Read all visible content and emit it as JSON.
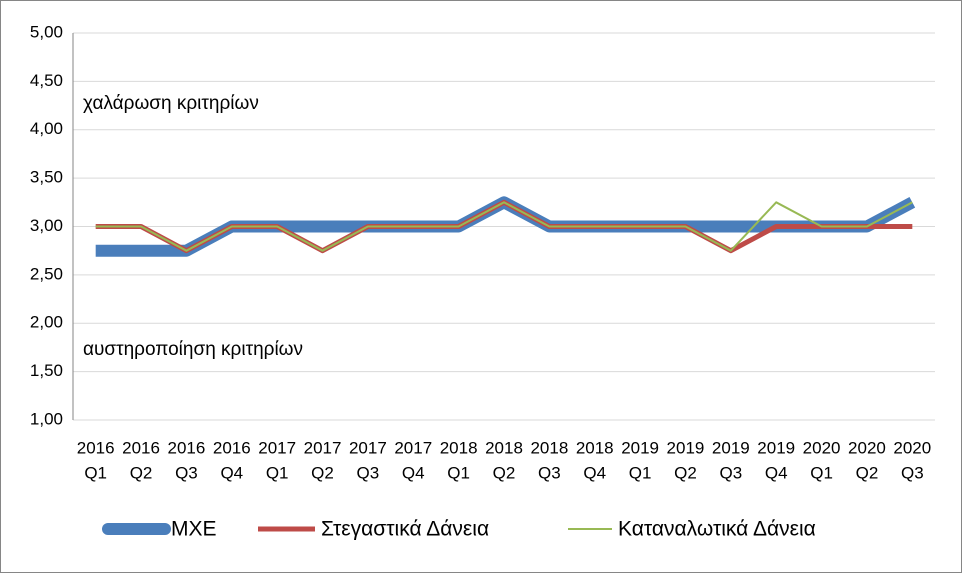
{
  "chart_data": {
    "type": "line",
    "annotations": [
      "χαλάρωση κριτηρίων",
      "αυστηροποίηση κριτηρίων"
    ],
    "categories": [
      [
        "2016",
        "Q1"
      ],
      [
        "2016",
        "Q2"
      ],
      [
        "2016",
        "Q3"
      ],
      [
        "2016",
        "Q4"
      ],
      [
        "2017",
        "Q1"
      ],
      [
        "2017",
        "Q2"
      ],
      [
        "2017",
        "Q3"
      ],
      [
        "2017",
        "Q4"
      ],
      [
        "2018",
        "Q1"
      ],
      [
        "2018",
        "Q2"
      ],
      [
        "2018",
        "Q3"
      ],
      [
        "2018",
        "Q4"
      ],
      [
        "2019",
        "Q1"
      ],
      [
        "2019",
        "Q2"
      ],
      [
        "2019",
        "Q3"
      ],
      [
        "2019",
        "Q4"
      ],
      [
        "2020",
        "Q1"
      ],
      [
        "2020",
        "Q2"
      ],
      [
        "2020",
        "Q3"
      ]
    ],
    "series": [
      {
        "name": "ΜΧΕ",
        "color": "#4a7ebb",
        "values": [
          2.75,
          2.75,
          2.75,
          3,
          3,
          3,
          3,
          3,
          3,
          3.25,
          3,
          3,
          3,
          3,
          3,
          3,
          3,
          3,
          3.25
        ]
      },
      {
        "name": "Στεγαστικά Δάνεια",
        "color": "#be4b48",
        "values": [
          3,
          3,
          2.75,
          3,
          3,
          2.75,
          3,
          3,
          3,
          3.25,
          3,
          3,
          3,
          3,
          2.75,
          3,
          3,
          3,
          3
        ]
      },
      {
        "name": "Καταναλωτικά Δάνεια",
        "color": "#98b954",
        "values": [
          3,
          3,
          2.75,
          3,
          3,
          2.75,
          3,
          3,
          3,
          3.25,
          3,
          3,
          3,
          3,
          2.75,
          3.25,
          3,
          3,
          3.25
        ]
      }
    ],
    "ylim": [
      1,
      5
    ],
    "yticks": [
      {
        "value": 1,
        "label": "1,00"
      },
      {
        "value": 1.5,
        "label": "1,50"
      },
      {
        "value": 2,
        "label": "2,00"
      },
      {
        "value": 2.5,
        "label": "2,50"
      },
      {
        "value": 3,
        "label": "3,00"
      },
      {
        "value": 3.5,
        "label": "3,50"
      },
      {
        "value": 4,
        "label": "4,00"
      },
      {
        "value": 4.5,
        "label": "4,50"
      },
      {
        "value": 5,
        "label": "5,00"
      }
    ],
    "grid": true,
    "legend": "bottom"
  }
}
